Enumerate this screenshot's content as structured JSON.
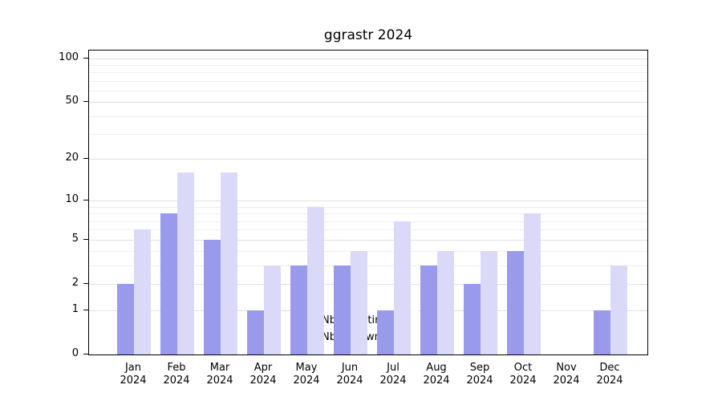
{
  "chart_data": {
    "type": "bar",
    "title": "ggrastr 2024",
    "categories": [
      "Jan",
      "Feb",
      "Mar",
      "Apr",
      "May",
      "Jun",
      "Jul",
      "Aug",
      "Sep",
      "Oct",
      "Nov",
      "Dec"
    ],
    "year_label": "2024",
    "series": [
      {
        "name": "Nb of distinct IPs",
        "color": "#9a9aec",
        "values": [
          2,
          8,
          5,
          1,
          3,
          3,
          1,
          3,
          2,
          4,
          0,
          1
        ]
      },
      {
        "name": "Nb of downloads",
        "color": "#dadaf8",
        "values": [
          6,
          16,
          16,
          3,
          9,
          4,
          7,
          4,
          4,
          8,
          0,
          3
        ]
      }
    ],
    "scale": "log1p",
    "yticks": [
      0,
      1,
      2,
      5,
      10,
      20,
      50,
      100
    ],
    "minor_gridlines": [
      3,
      4,
      6,
      7,
      8,
      9,
      30,
      40,
      60,
      70,
      80,
      90
    ],
    "ylim": [
      0,
      113
    ],
    "xlabel": "",
    "ylabel": "",
    "grid": true,
    "legend_position": "bottom-center",
    "axis_color": "#000000",
    "background_color": "#ffffff"
  }
}
